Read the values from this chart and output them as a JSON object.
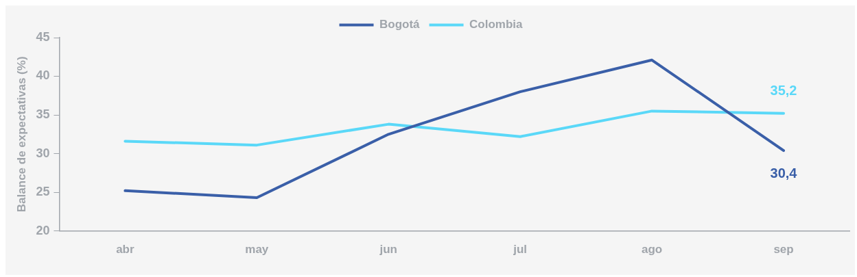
{
  "chart_data": {
    "type": "line",
    "ylabel": "Balance de expectativas (%)",
    "categories": [
      "abr",
      "may",
      "jun",
      "jul",
      "ago",
      "sep"
    ],
    "series": [
      {
        "name": "Bogotá",
        "color": "#3a5fa8",
        "values": [
          25.2,
          24.3,
          32.5,
          38.0,
          42.1,
          30.4
        ],
        "value_labels": [
          null,
          null,
          null,
          null,
          null,
          "30,4"
        ]
      },
      {
        "name": "Colombia",
        "color": "#5ad8f8",
        "values": [
          31.6,
          31.1,
          33.8,
          32.2,
          35.5,
          35.2
        ],
        "value_labels": [
          null,
          null,
          null,
          null,
          null,
          "35,2"
        ]
      }
    ],
    "ylim": [
      20,
      45
    ],
    "yticks": [
      20,
      25,
      30,
      35,
      40,
      45
    ],
    "grid": false,
    "legend": "top",
    "marker": "none",
    "line_style": "solid"
  }
}
